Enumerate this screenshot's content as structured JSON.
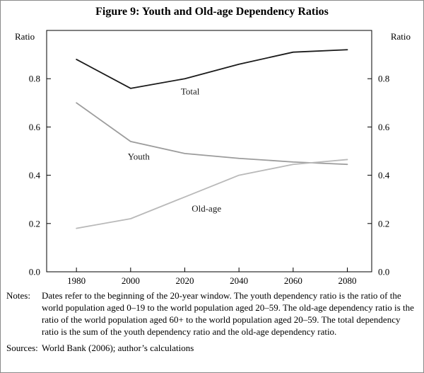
{
  "figure": {
    "title": "Figure 9: Youth and Old-age Dependency Ratios"
  },
  "chart_data": {
    "type": "line",
    "title": "Figure 9: Youth and Old-age Dependency Ratios",
    "ylabel_left": "Ratio",
    "ylabel_right": "Ratio",
    "xlim": [
      1969,
      2089
    ],
    "ylim": [
      0,
      1.0
    ],
    "grid": false,
    "legend_position": "inline-labels",
    "x_ticks": [
      1980,
      2000,
      2020,
      2040,
      2060,
      2080
    ],
    "y_ticks": [
      0.0,
      0.2,
      0.4,
      0.6,
      0.8
    ],
    "y_tick_labels": [
      "0.0",
      "0.2",
      "0.4",
      "0.6",
      "0.8"
    ],
    "categories": [
      1980,
      2000,
      2020,
      2040,
      2060,
      2080
    ],
    "series": [
      {
        "name": "Total",
        "color": "#1a1a1a",
        "width": 1.8,
        "x": [
          1980,
          2000,
          2020,
          2040,
          2060,
          2080
        ],
        "values": [
          0.88,
          0.76,
          0.8,
          0.86,
          0.91,
          0.92
        ],
        "label_pos": {
          "x": 2022,
          "y": 0.735
        }
      },
      {
        "name": "Youth",
        "color": "#9c9c9c",
        "width": 1.8,
        "x": [
          1980,
          2000,
          2020,
          2040,
          2060,
          2080
        ],
        "values": [
          0.7,
          0.54,
          0.49,
          0.47,
          0.455,
          0.445
        ],
        "label_pos": {
          "x": 2003,
          "y": 0.465
        }
      },
      {
        "name": "Old-age",
        "color": "#b9b9b9",
        "width": 1.8,
        "x": [
          1980,
          2000,
          2020,
          2040,
          2060,
          2080
        ],
        "values": [
          0.18,
          0.22,
          0.31,
          0.4,
          0.445,
          0.465
        ],
        "label_pos": {
          "x": 2028,
          "y": 0.25
        }
      }
    ]
  },
  "notes": {
    "notes_label": "Notes:",
    "notes_text": "Dates refer to the beginning of the 20-year window. The youth dependency ratio is the ratio of the world population aged 0–19 to the world population aged 20–59. The old-age dependency ratio is the ratio of the world population aged 60+ to the world population aged 20–59. The total dependency ratio is the sum of the youth dependency ratio and the old-age dependency ratio.",
    "sources_label": "Sources:",
    "sources_text": "World Bank (2006); author’s calculations"
  }
}
